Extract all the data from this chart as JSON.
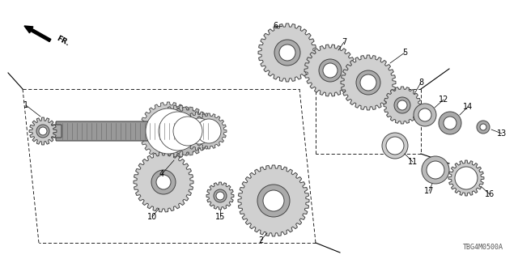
{
  "bg_color": "#ffffff",
  "diagram_code": "TBG4M0500A",
  "shaft_color": "#888888",
  "gear_light": "#d4d4d4",
  "gear_mid": "#aaaaaa",
  "gear_dark": "#888888",
  "ring_color": "#bbbbbb",
  "edge_color": "#444444",
  "line_color": "#000000"
}
